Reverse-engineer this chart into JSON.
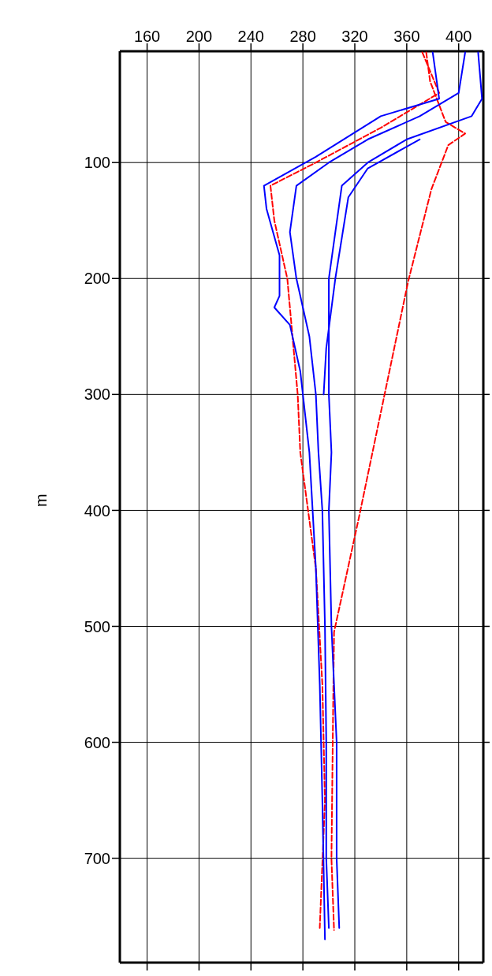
{
  "chart_data": {
    "type": "line",
    "ylabel": "m",
    "xlim": [
      139,
      419
    ],
    "xticks": [
      160,
      200,
      240,
      280,
      320,
      360,
      400
    ],
    "ylim": [
      790,
      4
    ],
    "yticks": [
      100,
      200,
      300,
      400,
      500,
      600,
      700
    ],
    "grid": true,
    "marker": "none",
    "series": [
      {
        "color": "#ff0000",
        "line_style": "dashed",
        "x": [
          375,
          378,
          390,
          405,
          392,
          379,
          361,
          323,
          304,
          303,
          302,
          304
        ],
        "values": [
          5,
          30,
          65,
          75,
          85,
          123,
          203,
          407,
          505,
          600,
          700,
          762
        ]
      },
      {
        "color": "#ff0000",
        "line_style": "dashed",
        "x": [
          372,
          385,
          340,
          290,
          255,
          258,
          268,
          276,
          278,
          290,
          295,
          297,
          293
        ],
        "values": [
          5,
          40,
          70,
          100,
          120,
          150,
          200,
          300,
          350,
          450,
          550,
          650,
          760
        ]
      },
      {
        "color": "#0000ff",
        "line_style": "solid",
        "x": [
          405,
          400,
          370,
          330,
          300,
          275,
          270,
          275,
          285,
          290,
          292,
          295,
          297,
          298,
          298,
          300
        ],
        "values": [
          5,
          40,
          60,
          80,
          100,
          120,
          160,
          200,
          250,
          300,
          350,
          400,
          500,
          600,
          700,
          760
        ]
      },
      {
        "color": "#0000ff",
        "line_style": "solid",
        "x": [
          380,
          385,
          340,
          290,
          250,
          252,
          262,
          262,
          258,
          270,
          278,
          285,
          290,
          293,
          295,
          297
        ],
        "values": [
          5,
          45,
          60,
          95,
          120,
          140,
          180,
          215,
          225,
          240,
          280,
          350,
          450,
          550,
          650,
          770
        ]
      },
      {
        "color": "#0000ff",
        "line_style": "solid",
        "x": [
          415,
          418,
          410,
          360,
          330,
          310,
          305,
          300,
          300,
          302,
          300,
          302,
          306,
          306,
          308
        ],
        "values": [
          5,
          45,
          60,
          80,
          100,
          120,
          160,
          200,
          300,
          350,
          400,
          500,
          600,
          700,
          760
        ]
      },
      {
        "color": "#0000ff",
        "line_style": "solid",
        "x": [
          370,
          330,
          315,
          305,
          298,
          296
        ],
        "values": [
          80,
          105,
          130,
          200,
          260,
          300
        ]
      }
    ]
  }
}
